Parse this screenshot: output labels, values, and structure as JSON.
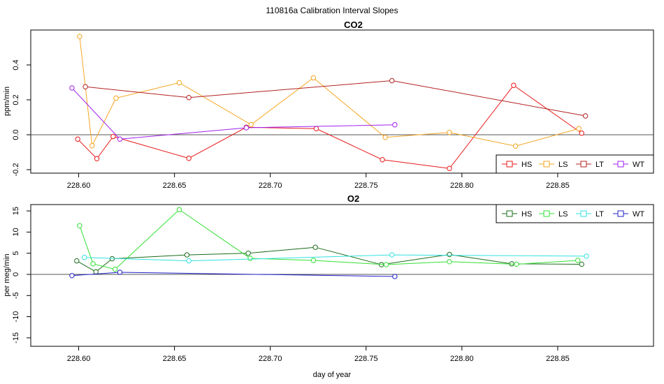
{
  "figure": {
    "title": "110816a   Calibration Interval Slopes",
    "xlabel": "day of year"
  },
  "chart_data": [
    {
      "type": "line",
      "title": "CO2",
      "xlabel": "",
      "ylabel": "ppm/min",
      "xlim": [
        228.575,
        228.9
      ],
      "ylim": [
        -0.22,
        0.6
      ],
      "xticks": [
        228.6,
        228.65,
        228.7,
        228.75,
        228.8,
        228.85
      ],
      "xtick_labels": [
        "228.60",
        "228.65",
        "228.70",
        "228.75",
        "228.80",
        "228.85"
      ],
      "yticks": [
        -0.2,
        0.0,
        0.2,
        0.4
      ],
      "ytick_labels": [
        "-0.2",
        "0.0",
        "0.2",
        "0.4"
      ],
      "hline": 0,
      "legend": "bottom-right",
      "series": [
        {
          "name": "HS",
          "color": "#e8191a",
          "x": [
            228.5995,
            228.6095,
            228.618,
            228.6575,
            228.6875,
            228.724,
            228.7585,
            228.7935,
            228.827,
            228.8625
          ],
          "y": [
            -0.025,
            -0.137,
            -0.01,
            -0.135,
            0.043,
            0.035,
            -0.143,
            -0.193,
            0.283,
            0.009
          ]
        },
        {
          "name": "LS",
          "color": "#f5a623",
          "x": [
            228.6005,
            228.607,
            228.6195,
            228.6525,
            228.69,
            228.7225,
            228.76,
            228.7935,
            228.828,
            228.861
          ],
          "y": [
            0.563,
            -0.063,
            0.21,
            0.298,
            0.058,
            0.326,
            -0.015,
            0.013,
            -0.065,
            0.035
          ]
        },
        {
          "name": "LT",
          "color": "#b22222",
          "x": [
            228.6035,
            228.6575,
            228.7635,
            228.8645
          ],
          "y": [
            0.275,
            0.213,
            0.31,
            0.108
          ]
        },
        {
          "name": "WT",
          "color": "#a020f0",
          "x": [
            228.5965,
            228.6215,
            228.6875,
            228.765
          ],
          "y": [
            0.268,
            -0.025,
            0.04,
            0.057
          ]
        }
      ]
    },
    {
      "type": "line",
      "title": "O2",
      "xlabel": "day of year",
      "ylabel": "per meg/min",
      "xlim": [
        228.575,
        228.9
      ],
      "ylim": [
        -17,
        16.5
      ],
      "xticks": [
        228.6,
        228.65,
        228.7,
        228.75,
        228.8,
        228.85
      ],
      "xtick_labels": [
        "228.60",
        "228.65",
        "228.70",
        "228.75",
        "228.80",
        "228.85"
      ],
      "yticks": [
        -15,
        -10,
        -5,
        0,
        5,
        10,
        15
      ],
      "ytick_labels": [
        "-15",
        "-10",
        "-5",
        "0",
        "5",
        "10",
        "15"
      ],
      "hline": 0,
      "legend": "top-right",
      "series": [
        {
          "name": "HS",
          "color": "#1a6b1a",
          "x": [
            228.599,
            228.609,
            228.6175,
            228.6565,
            228.6885,
            228.7235,
            228.758,
            228.7935,
            228.826,
            228.8625
          ],
          "y": [
            3.2,
            0.6,
            3.7,
            4.6,
            5.0,
            6.4,
            2.3,
            4.7,
            2.5,
            2.4
          ]
        },
        {
          "name": "LS",
          "color": "#33e033",
          "x": [
            228.6005,
            228.6075,
            228.619,
            228.6525,
            228.6895,
            228.7225,
            228.7605,
            228.7935,
            228.8285,
            228.8605
          ],
          "y": [
            11.5,
            2.5,
            1.2,
            15.3,
            3.8,
            3.3,
            2.3,
            3.0,
            2.4,
            3.3
          ]
        },
        {
          "name": "LT",
          "color": "#33e0e0",
          "x": [
            228.603,
            228.6575,
            228.7635,
            228.865
          ],
          "y": [
            4.0,
            3.2,
            4.6,
            4.3
          ]
        },
        {
          "name": "WT",
          "color": "#2020c8",
          "x": [
            228.5965,
            228.6215,
            228.765
          ],
          "y": [
            -0.3,
            0.5,
            -0.5
          ]
        }
      ]
    }
  ]
}
